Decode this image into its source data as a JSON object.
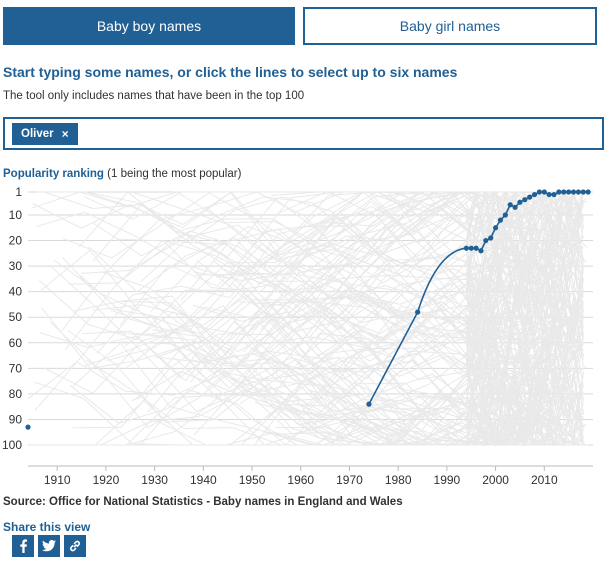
{
  "tabs": {
    "boys": "Baby boy names",
    "girls": "Baby girl names"
  },
  "instructions": "Start typing some names, or click the lines to select up to six names",
  "subinstructions": "The tool only includes names that have been in the top 100",
  "selected_names": [
    {
      "label": "Oliver",
      "close": "×"
    }
  ],
  "y_axis_title": "Popularity ranking",
  "y_axis_note": "(1 being the most popular)",
  "source": "Source: Office for National Statistics - Baby names in England and Wales",
  "share": {
    "label": "Share this view",
    "icons": [
      "facebook-icon",
      "twitter-icon",
      "link-icon"
    ]
  },
  "colors": {
    "accent": "#206095",
    "background_lines": "#e9e9e9",
    "grid": "#d9d9d9"
  },
  "chart_data": {
    "type": "line",
    "x_range": [
      1904,
      2020
    ],
    "y_range": [
      1,
      100
    ],
    "y_inverted": true,
    "x_ticks": [
      1910,
      1920,
      1930,
      1940,
      1950,
      1960,
      1970,
      1980,
      1990,
      2000,
      2010
    ],
    "y_ticks": [
      1,
      10,
      20,
      30,
      40,
      50,
      60,
      70,
      80,
      90,
      100
    ],
    "background_series": "all other names that have been in the top 100, drawn as faint grey lines",
    "series": [
      {
        "name": "Oliver",
        "points": [
          [
            1904,
            93
          ],
          [
            1974,
            84
          ],
          [
            1984,
            48
          ],
          [
            1994,
            23
          ],
          [
            1995,
            23
          ],
          [
            1996,
            23
          ],
          [
            1997,
            24
          ],
          [
            1998,
            20
          ],
          [
            1999,
            19
          ],
          [
            2000,
            15
          ],
          [
            2001,
            12
          ],
          [
            2002,
            10
          ],
          [
            2003,
            6
          ],
          [
            2004,
            7
          ],
          [
            2005,
            5
          ],
          [
            2006,
            4
          ],
          [
            2007,
            3
          ],
          [
            2008,
            2
          ],
          [
            2009,
            1
          ],
          [
            2010,
            1
          ],
          [
            2011,
            2
          ],
          [
            2012,
            2
          ],
          [
            2013,
            1
          ],
          [
            2014,
            1
          ],
          [
            2015,
            1
          ],
          [
            2016,
            1
          ],
          [
            2017,
            1
          ],
          [
            2018,
            1
          ],
          [
            2019,
            1
          ]
        ]
      }
    ]
  }
}
